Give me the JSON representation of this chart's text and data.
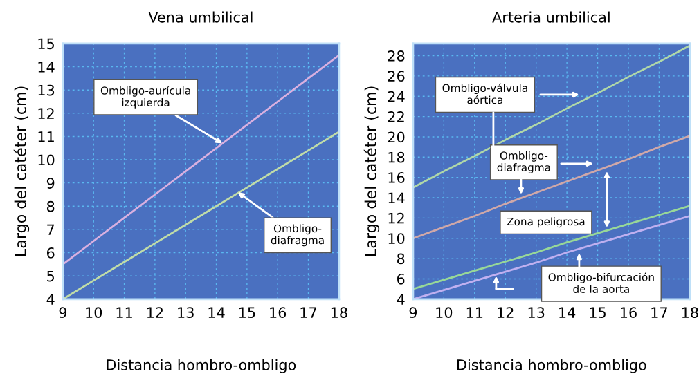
{
  "chart_data": [
    {
      "type": "line",
      "title": "Vena umbilical",
      "xlabel": "Distancia hombro-ombligo",
      "ylabel": "Largo del catéter (cm)",
      "xlim": [
        9,
        18
      ],
      "xticks": [
        9,
        10,
        11,
        12,
        13,
        14,
        15,
        16,
        17,
        18
      ],
      "ylim": [
        4,
        15
      ],
      "yticks": [
        4,
        5,
        6,
        7,
        8,
        9,
        10,
        11,
        12,
        13,
        14,
        15
      ],
      "grid": true,
      "series": [
        {
          "color": "#d9b0e0",
          "x": [
            9,
            10,
            11,
            12,
            13,
            14,
            15,
            16,
            17,
            18
          ],
          "values": [
            5.5,
            6.5,
            7.5,
            8.5,
            9.5,
            10.5,
            11.5,
            12.5,
            13.5,
            14.5
          ]
        },
        {
          "color": "#c0dca8",
          "x": [
            9,
            10,
            11,
            12,
            13,
            14,
            15,
            16,
            17,
            18
          ],
          "values": [
            4,
            4.8,
            5.6,
            6.4,
            7.2,
            8,
            8.8,
            9.6,
            10.4,
            11.2
          ]
        }
      ],
      "annotations": [
        {
          "text": "Ombligo-aurícula\nizquierda",
          "x": 14.2,
          "y": 10.7
        },
        {
          "text": "Ombligo-\ndiafragma",
          "x": 14.7,
          "y": 8.6
        }
      ]
    },
    {
      "type": "line",
      "title": "Arteria umbilical",
      "xlabel": "Distancia hombro-ombligo",
      "ylabel": "Largo del catéter (cm)",
      "xlim": [
        9,
        18
      ],
      "xticks": [
        9,
        10,
        11,
        12,
        13,
        14,
        15,
        16,
        17,
        18
      ],
      "ylim": [
        4,
        29.2
      ],
      "yticks": [
        4,
        6,
        8,
        10,
        12,
        14,
        16,
        18,
        20,
        22,
        24,
        26,
        28
      ],
      "grid": true,
      "series": [
        {
          "color": "#b0d8a8",
          "x": [
            9,
            10,
            11,
            12,
            13,
            14,
            15,
            16,
            17,
            18
          ],
          "values": [
            15,
            16.6,
            18.1,
            19.7,
            21.2,
            22.8,
            24.3,
            25.9,
            27.4,
            29
          ]
        },
        {
          "color": "#d0a8a8",
          "x": [
            9,
            10,
            11,
            12,
            13,
            14,
            15,
            16,
            17,
            18
          ],
          "values": [
            10,
            11.1,
            12.2,
            13.4,
            14.5,
            15.6,
            16.7,
            17.8,
            19,
            20.1
          ]
        },
        {
          "color": "#98d898",
          "x": [
            9,
            10,
            11,
            12,
            13,
            14,
            15,
            16,
            17,
            18
          ],
          "values": [
            5,
            5.9,
            6.8,
            7.7,
            8.6,
            9.6,
            10.5,
            11.4,
            12.3,
            13.2
          ]
        },
        {
          "color": "#c0b0f0",
          "x": [
            9,
            10,
            11,
            12,
            13,
            14,
            15,
            16,
            17,
            18
          ],
          "values": [
            4,
            4.9,
            5.8,
            6.7,
            7.6,
            8.6,
            9.5,
            10.4,
            11.3,
            12.2
          ]
        }
      ],
      "annotations": [
        "Ombligo-válvula\naórtica",
        "Ombligo-\ndiafragma",
        "Zona peligrosa",
        "Ombligo-bifurcación\nde la aorta"
      ]
    }
  ]
}
